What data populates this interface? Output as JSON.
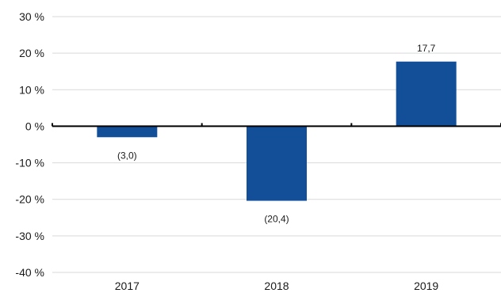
{
  "chart_data": {
    "type": "bar",
    "categories": [
      "2017",
      "2018",
      "2019"
    ],
    "values": [
      -3.0,
      -20.4,
      17.7
    ],
    "data_labels": [
      "(3,0)",
      "(20,4)",
      "17,7"
    ],
    "ylim": [
      -40,
      30
    ],
    "yticks": [
      30,
      20,
      10,
      0,
      -10,
      -20,
      -30,
      -40
    ],
    "ytick_labels": [
      "30 %",
      "20 %",
      "10 %",
      "0 %",
      "-10 %",
      "-20 %",
      "-30 %",
      "-40 %"
    ],
    "grid": true,
    "legend": "none",
    "title": "",
    "xlabel": "",
    "ylabel": "",
    "colors": {
      "bar": "#134f99",
      "grid": "#d9d9d9",
      "axis": "#000000"
    }
  }
}
